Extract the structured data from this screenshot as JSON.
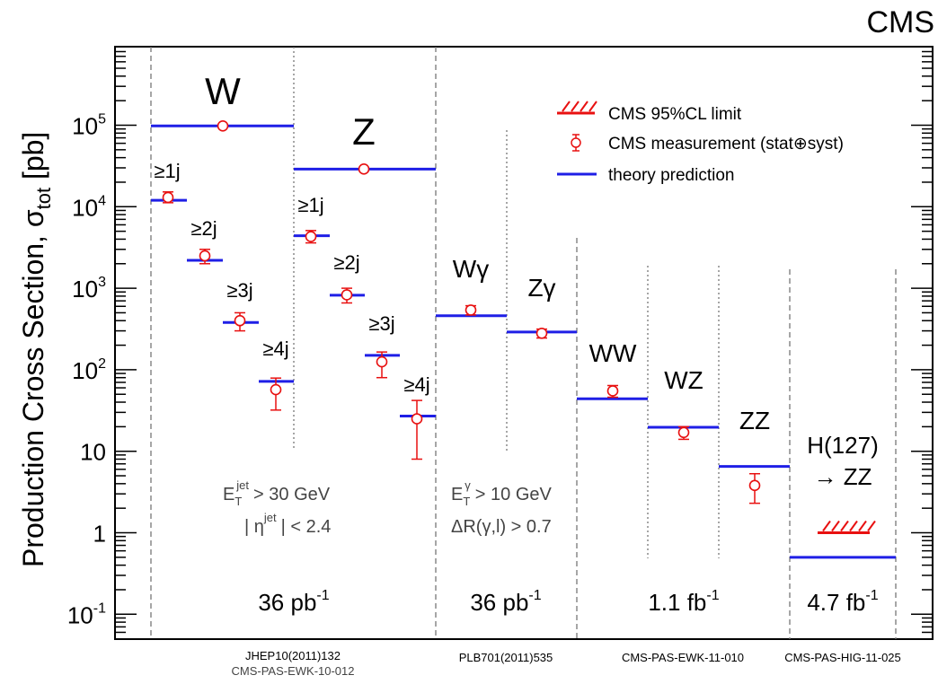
{
  "chart_data": {
    "type": "scatter",
    "brand": "CMS",
    "ylabel_main": "Production Cross Section,  σ",
    "ylabel_sub": "tot",
    "ylabel_unit": "[pb]",
    "yscale": "log",
    "ylim": [
      0.05,
      500000
    ],
    "yticks": [
      {
        "v": 0.1,
        "base": "10",
        "exp": "-1"
      },
      {
        "v": 1,
        "base": "1",
        "exp": ""
      },
      {
        "v": 10,
        "base": "10",
        "exp": ""
      },
      {
        "v": 100,
        "base": "10",
        "exp": "2"
      },
      {
        "v": 1000,
        "base": "10",
        "exp": "3"
      },
      {
        "v": 10000,
        "base": "10",
        "exp": "4"
      },
      {
        "v": 100000,
        "base": "10",
        "exp": "5"
      }
    ],
    "legend_position": "top-right",
    "legend": [
      {
        "kind": "limit",
        "label": "CMS 95%CL limit"
      },
      {
        "kind": "measurement",
        "label": "CMS measurement (stat⊕syst)"
      },
      {
        "kind": "theory",
        "label": "theory prediction"
      }
    ],
    "colors": {
      "theory": "#1f1fe6",
      "measurement": "#e81010",
      "axis": "#000000",
      "separator": "#777777"
    },
    "series": [
      {
        "name": "CMS measurement (stat⊕syst)",
        "points": [
          {
            "process": "W",
            "value": 98000,
            "err_low": 0,
            "err_high": 0
          },
          {
            "process": "W ≥1j",
            "value": 13000,
            "err_low": 1800,
            "err_high": 2200
          },
          {
            "process": "W ≥2j",
            "value": 2500,
            "err_low": 500,
            "err_high": 500
          },
          {
            "process": "W ≥3j",
            "value": 400,
            "err_low": 100,
            "err_high": 100
          },
          {
            "process": "W ≥4j",
            "value": 57,
            "err_low": 25,
            "err_high": 22
          },
          {
            "process": "Z",
            "value": 29000,
            "err_low": 0,
            "err_high": 0
          },
          {
            "process": "Z ≥1j",
            "value": 4300,
            "err_low": 700,
            "err_high": 800
          },
          {
            "process": "Z ≥2j",
            "value": 830,
            "err_low": 170,
            "err_high": 170
          },
          {
            "process": "Z ≥3j",
            "value": 125,
            "err_low": 45,
            "err_high": 40
          },
          {
            "process": "Z ≥4j",
            "value": 25,
            "err_low": 17,
            "err_high": 17
          },
          {
            "process": "Wγ",
            "value": 540,
            "err_low": 70,
            "err_high": 70
          },
          {
            "process": "Zγ",
            "value": 280,
            "err_low": 35,
            "err_high": 35
          },
          {
            "process": "WW",
            "value": 55,
            "err_low": 9,
            "err_high": 9
          },
          {
            "process": "WZ",
            "value": 17,
            "err_low": 3,
            "err_high": 3
          },
          {
            "process": "ZZ",
            "value": 3.8,
            "err_low": 1.5,
            "err_high": 1.5
          }
        ]
      },
      {
        "name": "theory prediction",
        "points": [
          {
            "process": "W",
            "value": 98000
          },
          {
            "process": "W ≥1j",
            "value": 12000
          },
          {
            "process": "W ≥2j",
            "value": 2200
          },
          {
            "process": "W ≥3j",
            "value": 380
          },
          {
            "process": "W ≥4j",
            "value": 72
          },
          {
            "process": "Z",
            "value": 29000
          },
          {
            "process": "Z ≥1j",
            "value": 4400
          },
          {
            "process": "Z ≥2j",
            "value": 820
          },
          {
            "process": "Z ≥3j",
            "value": 150
          },
          {
            "process": "Z ≥4j",
            "value": 27
          },
          {
            "process": "Wγ",
            "value": 460
          },
          {
            "process": "Zγ",
            "value": 290
          },
          {
            "process": "WW",
            "value": 44
          },
          {
            "process": "WZ",
            "value": 19.7
          },
          {
            "process": "ZZ",
            "value": 6.5
          },
          {
            "process": "H(127) → ZZ",
            "value": 0.5
          }
        ]
      },
      {
        "name": "CMS 95%CL limit",
        "points": [
          {
            "process": "H(127) → ZZ",
            "value": 1.0
          }
        ]
      }
    ],
    "process_labels": {
      "W": "W",
      "Z": "Z",
      "Wg": "Wγ",
      "Zg": "Zγ",
      "WW": "WW",
      "WZ": "WZ",
      "ZZ": "ZZ",
      "H_line1": "H(127)",
      "H_line2": "→ ZZ",
      "ge1": "≥1j",
      "ge2": "≥2j",
      "ge3": "≥3j",
      "ge4": "≥4j"
    },
    "cuts": {
      "jet_et": "> 30 GeV",
      "jet_et_sup": "jet",
      "jet_eta": "| < 2.4",
      "jet_eta_sup": "jet",
      "gamma_et": "> 10 GeV",
      "gamma_et_sup": "γ",
      "gamma_dr": "ΔR(γ,l) > 0.7",
      "e_sym": "E",
      "e_sub": "T",
      "eta_sym": "| η"
    },
    "luminosity": [
      {
        "base": "36 pb",
        "exp": "-1"
      },
      {
        "base": "36 pb",
        "exp": "-1"
      },
      {
        "base": "1.1 fb",
        "exp": "-1"
      },
      {
        "base": "4.7 fb",
        "exp": "-1"
      }
    ],
    "references": {
      "vj_line1": "JHEP10(2011)132",
      "vj_line2": "CMS-PAS-EWK-10-012",
      "vg": "PLB701(2011)535",
      "vv": "CMS-PAS-EWK-11-010",
      "higgs": "CMS-PAS-HIG-11-025"
    }
  }
}
